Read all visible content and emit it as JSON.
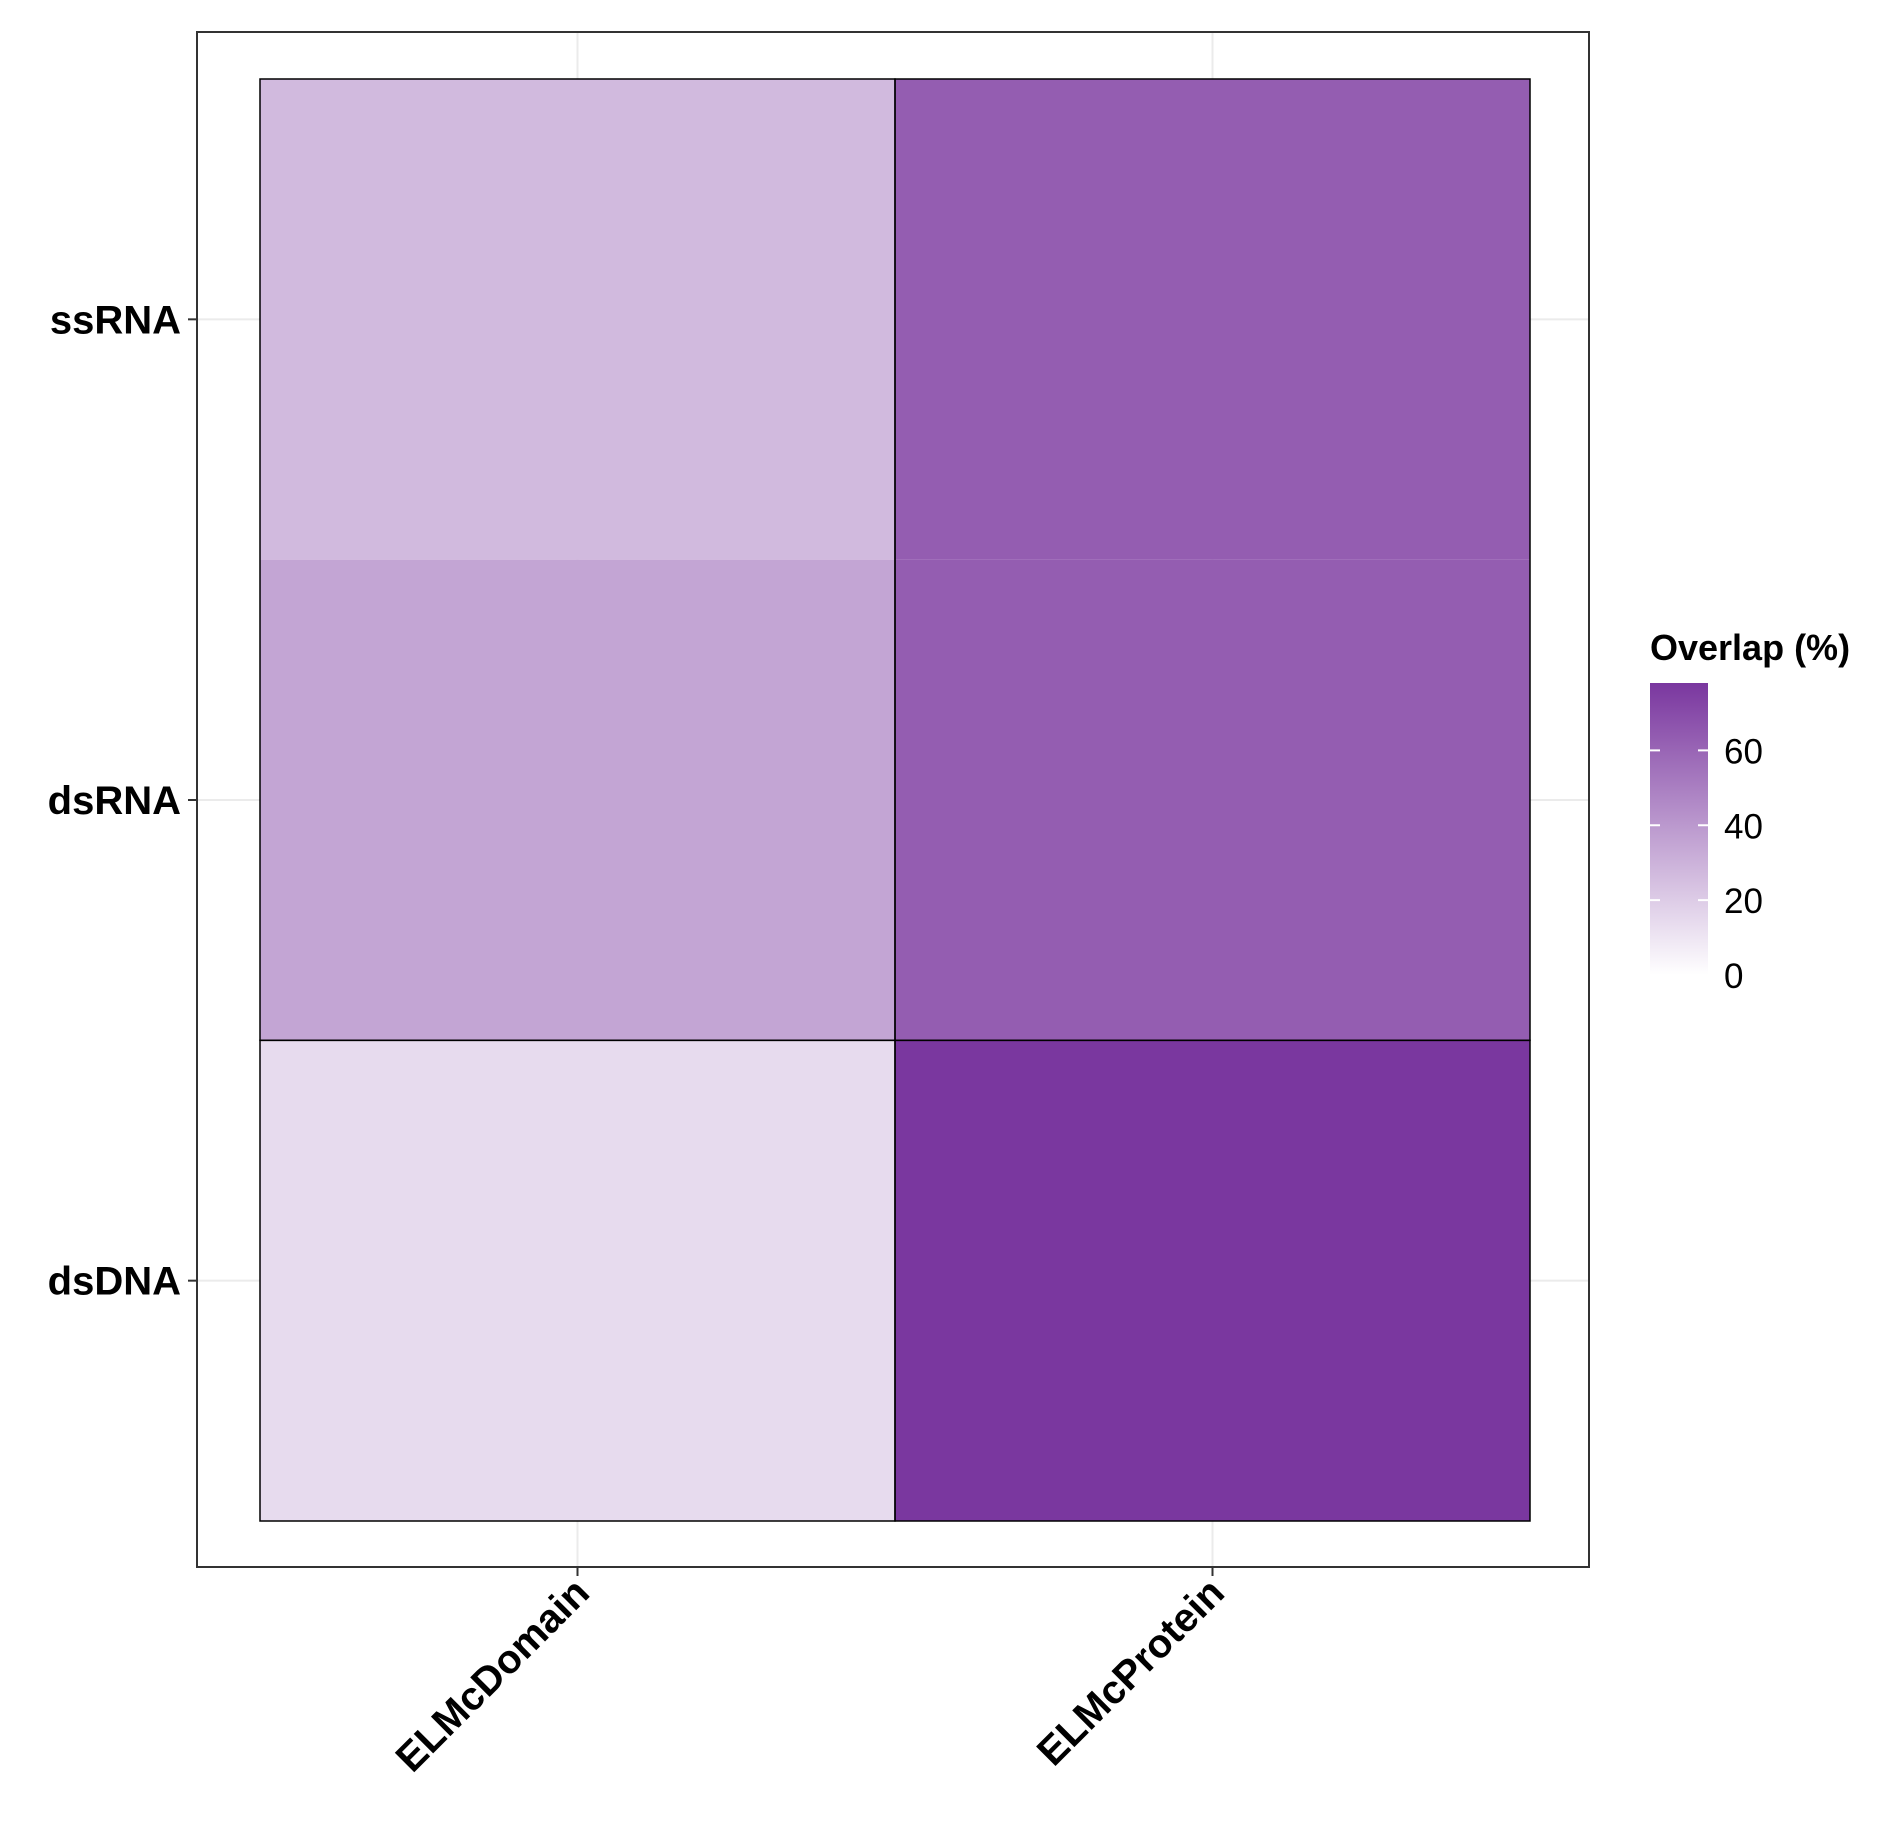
{
  "chart_data": {
    "type": "heatmap",
    "x_categories": [
      "ELMcDomain",
      "ELMcProtein"
    ],
    "y_categories": [
      "ssRNA",
      "dsRNA",
      "dsDNA"
    ],
    "cells": [
      {
        "x": "ELMcDomain",
        "y": "ssRNA",
        "value": 27
      },
      {
        "x": "ELMcDomain",
        "y": "dsRNA",
        "value": 35
      },
      {
        "x": "ELMcDomain",
        "y": "dsDNA",
        "value": 14
      },
      {
        "x": "ELMcProtein",
        "y": "ssRNA",
        "value": 63
      },
      {
        "x": "ELMcProtein",
        "y": "dsRNA",
        "value": 63
      },
      {
        "x": "ELMcProtein",
        "y": "dsDNA",
        "value": 78
      }
    ],
    "legend": {
      "title": "Overlap (%)",
      "ticks": [
        0,
        20,
        40,
        60
      ],
      "range": [
        0,
        78
      ],
      "low_color": "#ffffff",
      "high_color": "#7a379f"
    },
    "merged_cells": [
      {
        "x": "ELMcProtein",
        "y": [
          "ssRNA",
          "dsRNA"
        ]
      }
    ],
    "grid": true
  }
}
